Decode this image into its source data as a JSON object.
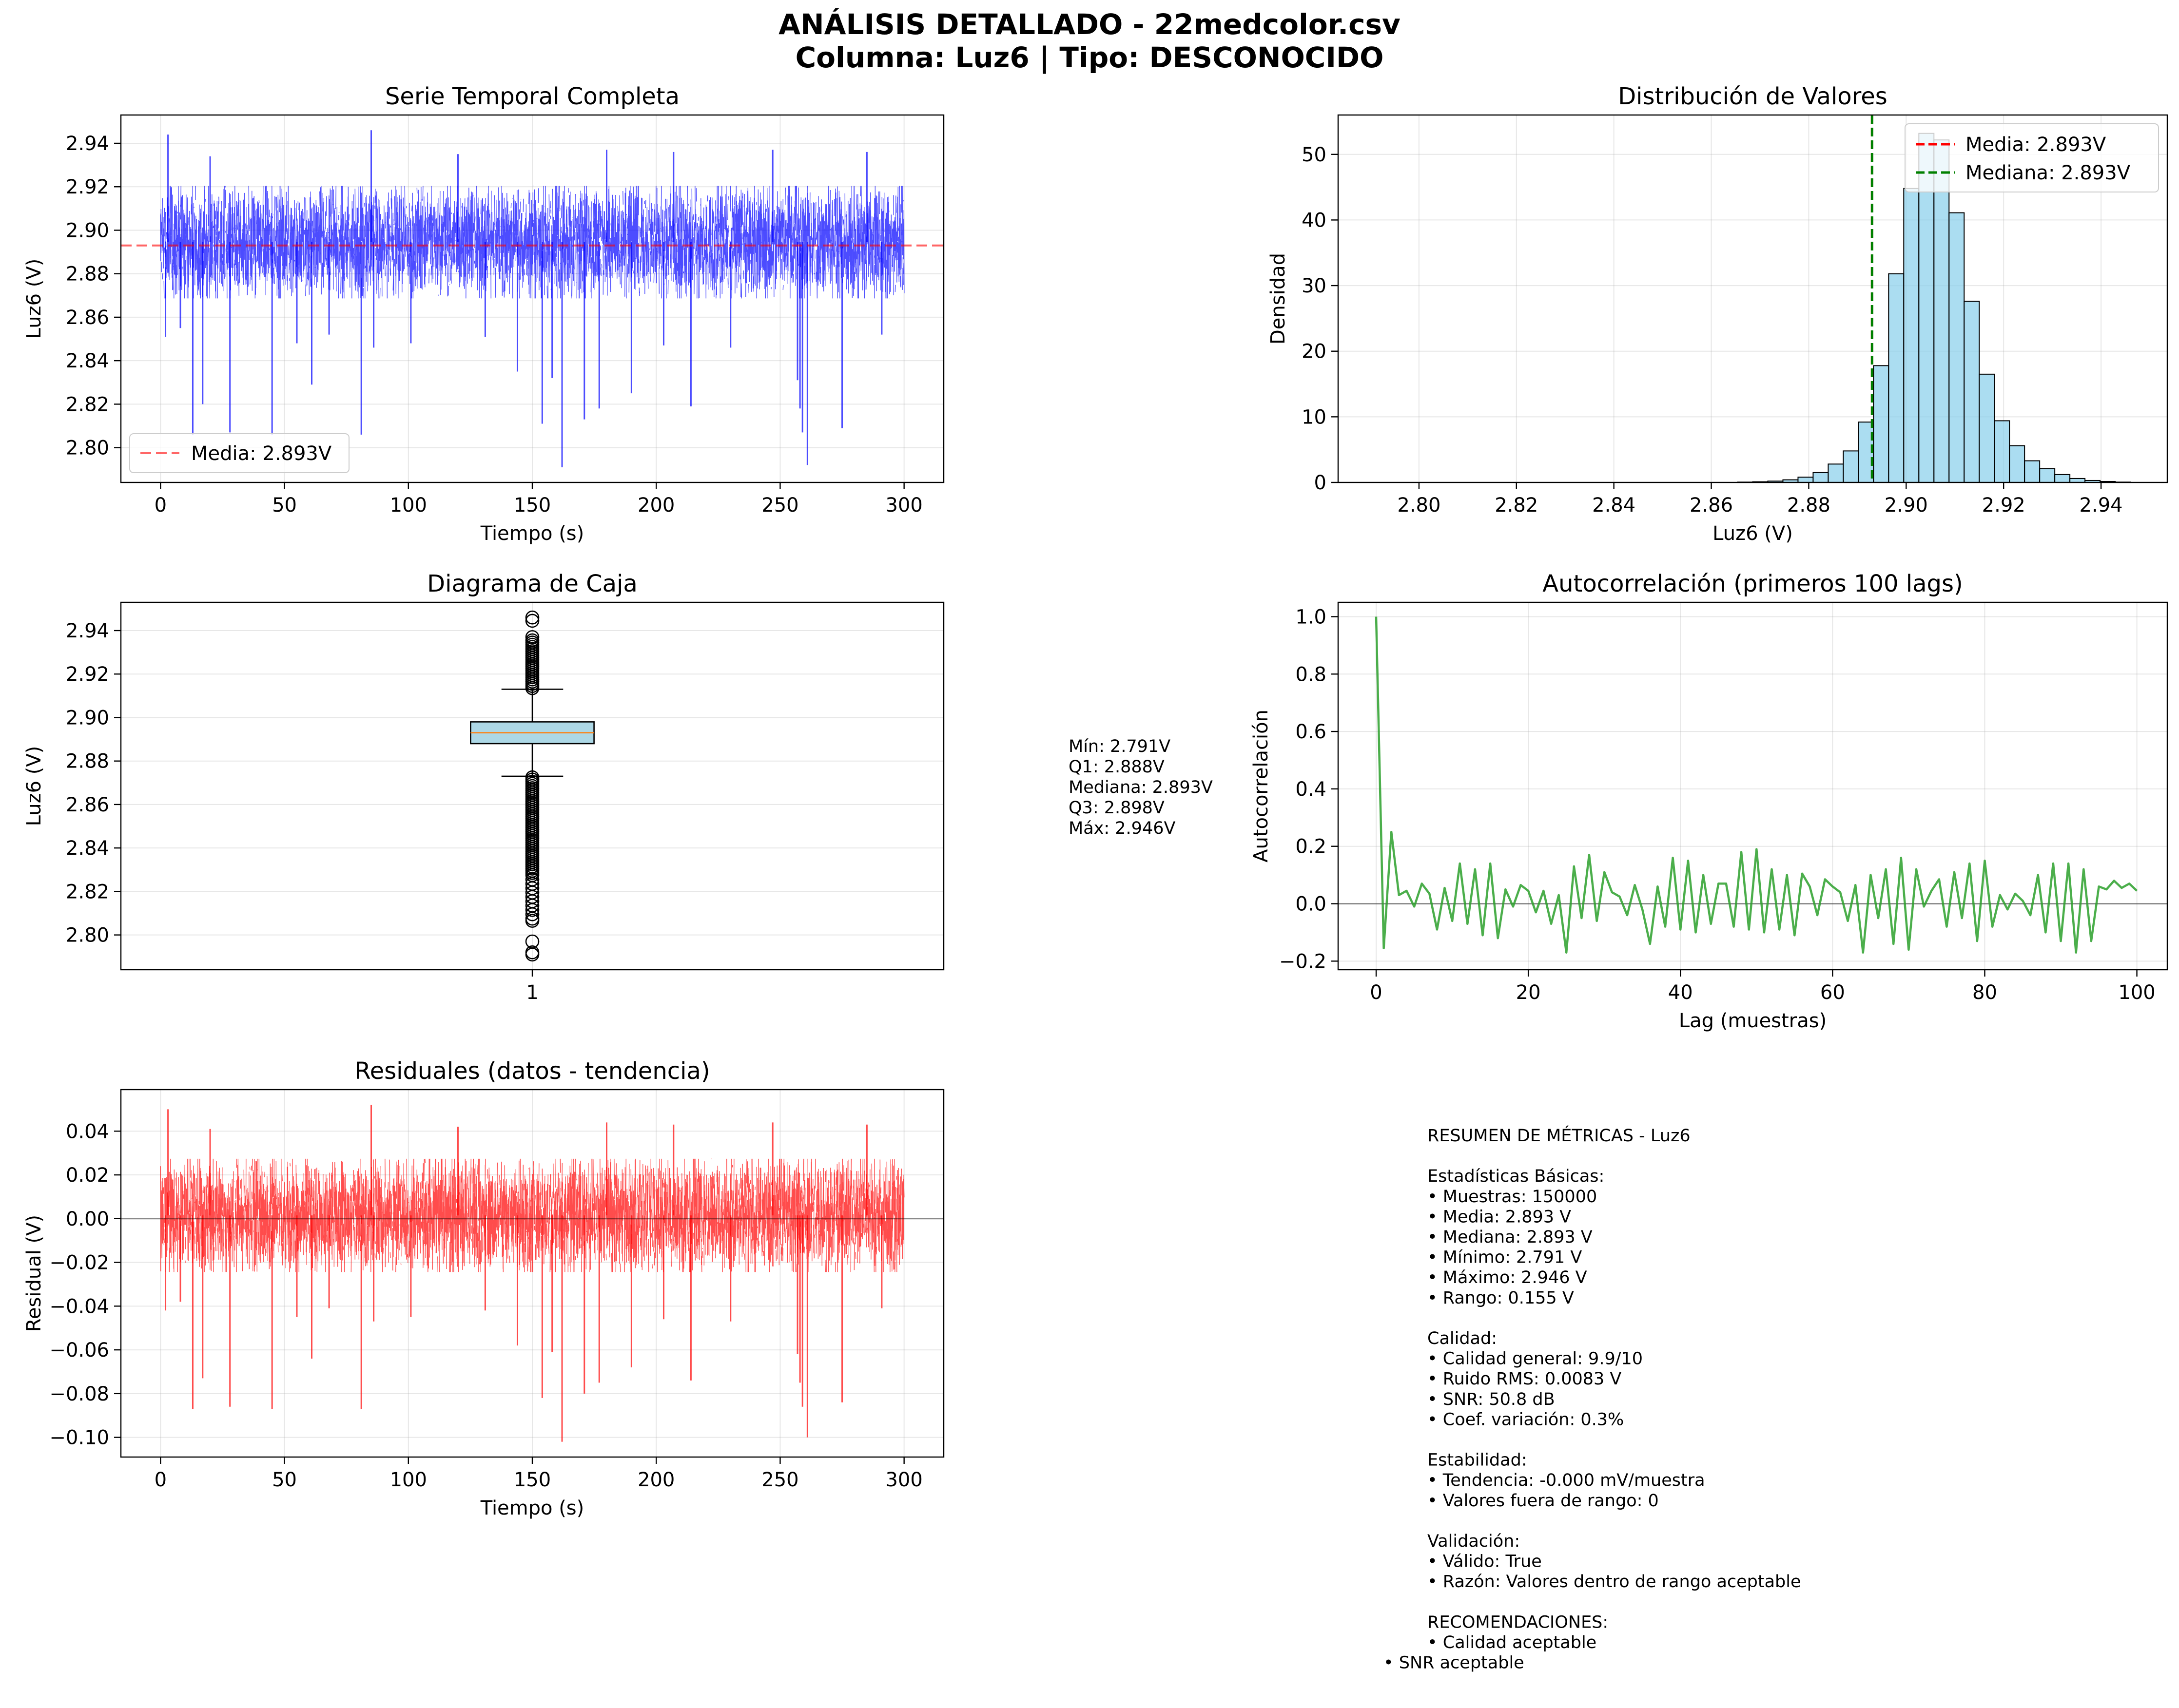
{
  "figure": {
    "title_line1": "ANÁLISIS DETALLADO - 22medcolor.csv",
    "title_line2": "Columna: Luz6 | Tipo: DESCONOCIDO"
  },
  "colors": {
    "series_blue": "#0000ff",
    "mean_line_red": "#ff0000",
    "hist_fill": "#87ceeb",
    "median_green": "#008000",
    "box_fill": "#add8e6",
    "box_median": "#ff7f0e",
    "autocorr_green": "#2ca02c",
    "residual_red": "#ff0000"
  },
  "chart_data": [
    {
      "id": "serie",
      "type": "line",
      "title": "Serie Temporal Completa",
      "xlabel": "Tiempo (s)",
      "ylabel": "Luz6 (V)",
      "xlim": [
        -16,
        316
      ],
      "ylim": [
        2.784,
        2.953
      ],
      "xticks": [
        0,
        50,
        100,
        150,
        200,
        250,
        300
      ],
      "yticks": [
        2.8,
        2.82,
        2.84,
        2.86,
        2.88,
        2.9,
        2.92,
        2.94
      ],
      "ytick_labels": [
        "2.80",
        "2.82",
        "2.84",
        "2.86",
        "2.88",
        "2.90",
        "2.92",
        "2.94"
      ],
      "x_range": [
        0,
        300
      ],
      "samples": 150000,
      "band": [
        2.872,
        2.917
      ],
      "mean": 2.893,
      "spikes_down": [
        [
          2,
          2.851
        ],
        [
          8,
          2.855
        ],
        [
          13,
          2.806
        ],
        [
          17,
          2.82
        ],
        [
          28,
          2.807
        ],
        [
          45,
          2.806
        ],
        [
          55,
          2.848
        ],
        [
          61,
          2.829
        ],
        [
          68,
          2.852
        ],
        [
          81,
          2.806
        ],
        [
          86,
          2.846
        ],
        [
          101,
          2.848
        ],
        [
          131,
          2.851
        ],
        [
          144,
          2.835
        ],
        [
          154,
          2.811
        ],
        [
          158,
          2.832
        ],
        [
          162,
          2.791
        ],
        [
          171,
          2.813
        ],
        [
          177,
          2.818
        ],
        [
          190,
          2.825
        ],
        [
          203,
          2.847
        ],
        [
          214,
          2.819
        ],
        [
          230,
          2.846
        ],
        [
          257,
          2.831
        ],
        [
          258,
          2.818
        ],
        [
          259,
          2.807
        ],
        [
          261,
          2.792
        ],
        [
          275,
          2.809
        ],
        [
          291,
          2.852
        ]
      ],
      "spikes_up": [
        [
          3,
          2.944
        ],
        [
          20,
          2.934
        ],
        [
          85,
          2.946
        ],
        [
          120,
          2.935
        ],
        [
          180,
          2.937
        ],
        [
          207,
          2.936
        ],
        [
          247,
          2.937
        ],
        [
          285,
          2.936
        ]
      ],
      "legend": {
        "mean_label": "Media: 2.893V",
        "loc": "lower-left"
      },
      "grid": true
    },
    {
      "id": "hist",
      "type": "bar",
      "title": "Distribución de Valores",
      "xlabel": "Luz6 (V)",
      "ylabel": "Densidad",
      "xlim": [
        2.7834,
        2.9536
      ],
      "ylim": [
        0,
        56
      ],
      "xticks": [
        2.8,
        2.82,
        2.84,
        2.86,
        2.88,
        2.9,
        2.92,
        2.94
      ],
      "xtick_labels": [
        "2.80",
        "2.82",
        "2.84",
        "2.86",
        "2.88",
        "2.90",
        "2.92",
        "2.94"
      ],
      "yticks": [
        0,
        10,
        20,
        30,
        40,
        50
      ],
      "bin_start": 2.791,
      "bin_width": 0.0031,
      "values": [
        0,
        0,
        0,
        0,
        0,
        0,
        0,
        0,
        0,
        0,
        0,
        0,
        0,
        0,
        0,
        0,
        0,
        0,
        0,
        0,
        0,
        0,
        0,
        0,
        0.05,
        0.1,
        0.2,
        0.4,
        0.8,
        1.5,
        2.8,
        4.8,
        9.2,
        17.8,
        31.8,
        44.8,
        53.2,
        52.2,
        41.1,
        27.6,
        16.5,
        9.4,
        5.6,
        3.3,
        2.1,
        1.2,
        0.6,
        0.3,
        0.15,
        0.05
      ],
      "mean": 2.893,
      "median": 2.893,
      "legend": {
        "mean_label": "Media: 2.893V",
        "median_label": "Mediana: 2.893V",
        "loc": "upper-right"
      },
      "grid": true
    },
    {
      "id": "box",
      "type": "box",
      "title": "Diagrama de Caja",
      "ylabel": "Luz6 (V)",
      "xticks": [
        1
      ],
      "xtick_labels": [
        "1"
      ],
      "xlim": [
        0.5,
        1.5
      ],
      "ylim": [
        2.784,
        2.953
      ],
      "yticks": [
        2.8,
        2.82,
        2.84,
        2.86,
        2.88,
        2.9,
        2.92,
        2.94
      ],
      "ytick_labels": [
        "2.80",
        "2.82",
        "2.84",
        "2.86",
        "2.88",
        "2.90",
        "2.92",
        "2.94"
      ],
      "q1": 2.888,
      "median": 2.893,
      "q3": 2.898,
      "whisker_low": 2.873,
      "whisker_high": 2.913,
      "outliers_high": [
        2.9135,
        2.9145,
        2.9155,
        2.9165,
        2.9175,
        2.9185,
        2.9195,
        2.9205,
        2.9215,
        2.9225,
        2.9235,
        2.9245,
        2.9255,
        2.9265,
        2.9275,
        2.9285,
        2.9295,
        2.9305,
        2.9315,
        2.9325,
        2.9335,
        2.9345,
        2.9355,
        2.937,
        2.9445,
        2.946
      ],
      "outliers_low": [
        2.8725,
        2.8715,
        2.8705,
        2.8695,
        2.8685,
        2.8675,
        2.8665,
        2.8655,
        2.8645,
        2.8635,
        2.8625,
        2.8615,
        2.8605,
        2.8595,
        2.8585,
        2.8575,
        2.8565,
        2.8555,
        2.8545,
        2.8535,
        2.8525,
        2.8515,
        2.8505,
        2.8495,
        2.8485,
        2.8475,
        2.8465,
        2.8455,
        2.8445,
        2.8435,
        2.8425,
        2.8415,
        2.8405,
        2.8395,
        2.8385,
        2.8375,
        2.8365,
        2.8355,
        2.8345,
        2.8335,
        2.8325,
        2.8315,
        2.8305,
        2.8295,
        2.8285,
        2.8275,
        2.8255,
        2.8235,
        2.8215,
        2.8195,
        2.8175,
        2.8155,
        2.8135,
        2.8115,
        2.8095,
        2.8075,
        2.8065,
        2.797,
        2.792,
        2.791
      ],
      "grid": true
    },
    {
      "id": "acf",
      "type": "line",
      "title": "Autocorrelación (primeros 100 lags)",
      "xlabel": "Lag (muestras)",
      "ylabel": "Autocorrelación",
      "xlim": [
        -5,
        104
      ],
      "ylim": [
        -0.23,
        1.05
      ],
      "xticks": [
        0,
        20,
        40,
        60,
        80,
        100
      ],
      "yticks": [
        -0.2,
        0.0,
        0.2,
        0.4,
        0.6,
        0.8,
        1.0
      ],
      "ytick_labels": [
        "−0.2",
        "0.0",
        "0.2",
        "0.4",
        "0.6",
        "0.8",
        "1.0"
      ],
      "values": [
        1.0,
        -0.155,
        0.25,
        0.03,
        0.045,
        -0.01,
        0.07,
        0.035,
        -0.09,
        0.055,
        -0.06,
        0.14,
        -0.07,
        0.12,
        -0.11,
        0.14,
        -0.12,
        0.05,
        -0.01,
        0.065,
        0.045,
        -0.03,
        0.045,
        -0.07,
        0.03,
        -0.17,
        0.13,
        -0.05,
        0.17,
        -0.06,
        0.11,
        0.04,
        0.025,
        -0.04,
        0.065,
        -0.02,
        -0.14,
        0.06,
        -0.08,
        0.16,
        -0.09,
        0.15,
        -0.1,
        0.1,
        -0.07,
        0.07,
        0.07,
        -0.08,
        0.18,
        -0.09,
        0.19,
        -0.1,
        0.12,
        -0.09,
        0.1,
        -0.11,
        0.105,
        0.06,
        -0.04,
        0.085,
        0.06,
        0.04,
        -0.06,
        0.065,
        -0.17,
        0.1,
        -0.05,
        0.12,
        -0.14,
        0.16,
        -0.16,
        0.12,
        -0.01,
        0.045,
        0.085,
        -0.08,
        0.11,
        -0.05,
        0.14,
        -0.13,
        0.15,
        -0.08,
        0.03,
        -0.02,
        0.035,
        0.01,
        -0.04,
        0.1,
        -0.1,
        0.14,
        -0.13,
        0.14,
        -0.17,
        0.12,
        -0.13,
        0.06,
        0.05,
        0.08,
        0.055,
        0.07,
        0.045
      ],
      "zero_line": 0,
      "grid": true
    },
    {
      "id": "resid",
      "type": "line",
      "title": "Residuales (datos - tendencia)",
      "xlabel": "Tiempo (s)",
      "ylabel": "Residual (V)",
      "xlim": [
        -16,
        316
      ],
      "ylim": [
        -0.109,
        0.059
      ],
      "xticks": [
        0,
        50,
        100,
        150,
        200,
        250,
        300
      ],
      "yticks": [
        -0.1,
        -0.08,
        -0.06,
        -0.04,
        -0.02,
        0.0,
        0.02,
        0.04
      ],
      "ytick_labels": [
        "−0.10",
        "−0.08",
        "−0.06",
        "−0.04",
        "−0.02",
        "0.00",
        "0.02",
        "0.04"
      ],
      "x_range": [
        0,
        300
      ],
      "band": [
        -0.021,
        0.024
      ],
      "spikes_down": [
        [
          2,
          -0.042
        ],
        [
          8,
          -0.038
        ],
        [
          13,
          -0.087
        ],
        [
          17,
          -0.073
        ],
        [
          28,
          -0.086
        ],
        [
          45,
          -0.087
        ],
        [
          55,
          -0.045
        ],
        [
          61,
          -0.064
        ],
        [
          68,
          -0.041
        ],
        [
          81,
          -0.087
        ],
        [
          86,
          -0.047
        ],
        [
          101,
          -0.045
        ],
        [
          131,
          -0.042
        ],
        [
          144,
          -0.058
        ],
        [
          154,
          -0.082
        ],
        [
          158,
          -0.061
        ],
        [
          162,
          -0.102
        ],
        [
          171,
          -0.08
        ],
        [
          177,
          -0.075
        ],
        [
          190,
          -0.068
        ],
        [
          203,
          -0.046
        ],
        [
          214,
          -0.074
        ],
        [
          230,
          -0.047
        ],
        [
          257,
          -0.062
        ],
        [
          258,
          -0.075
        ],
        [
          259,
          -0.086
        ],
        [
          261,
          -0.1
        ],
        [
          275,
          -0.084
        ],
        [
          291,
          -0.041
        ]
      ],
      "spikes_up": [
        [
          3,
          0.05
        ],
        [
          20,
          0.041
        ],
        [
          85,
          0.052
        ],
        [
          120,
          0.042
        ],
        [
          180,
          0.044
        ],
        [
          207,
          0.043
        ],
        [
          247,
          0.044
        ],
        [
          285,
          0.043
        ]
      ],
      "zero_line": 0,
      "grid": true
    }
  ],
  "box_stats_text": [
    "Mín: 2.791V",
    "Q1: 2.888V",
    "Mediana: 2.893V",
    "Q3: 2.898V",
    "Máx: 2.946V"
  ],
  "summary_text": [
    "RESUMEN DE MÉTRICAS - Luz6",
    "",
    "Estadísticas Básicas:",
    "• Muestras: 150000",
    "• Media: 2.893 V",
    "• Mediana: 2.893 V",
    "• Mínimo: 2.791 V",
    "• Máximo: 2.946 V",
    "• Rango: 0.155 V",
    "",
    "Calidad:",
    "• Calidad general: 9.9/10",
    "• Ruido RMS: 0.0083 V",
    "• SNR: 50.8 dB",
    "• Coef. variación: 0.3%",
    "",
    "Estabilidad:",
    "• Tendencia: -0.000 mV/muestra",
    "• Valores fuera de rango: 0",
    "",
    "Validación:",
    "• Válido: True",
    "• Razón: Valores dentro de rango aceptable",
    "",
    "RECOMENDACIONES:",
    "• Calidad aceptable"
  ],
  "summary_last_line": "• SNR aceptable"
}
